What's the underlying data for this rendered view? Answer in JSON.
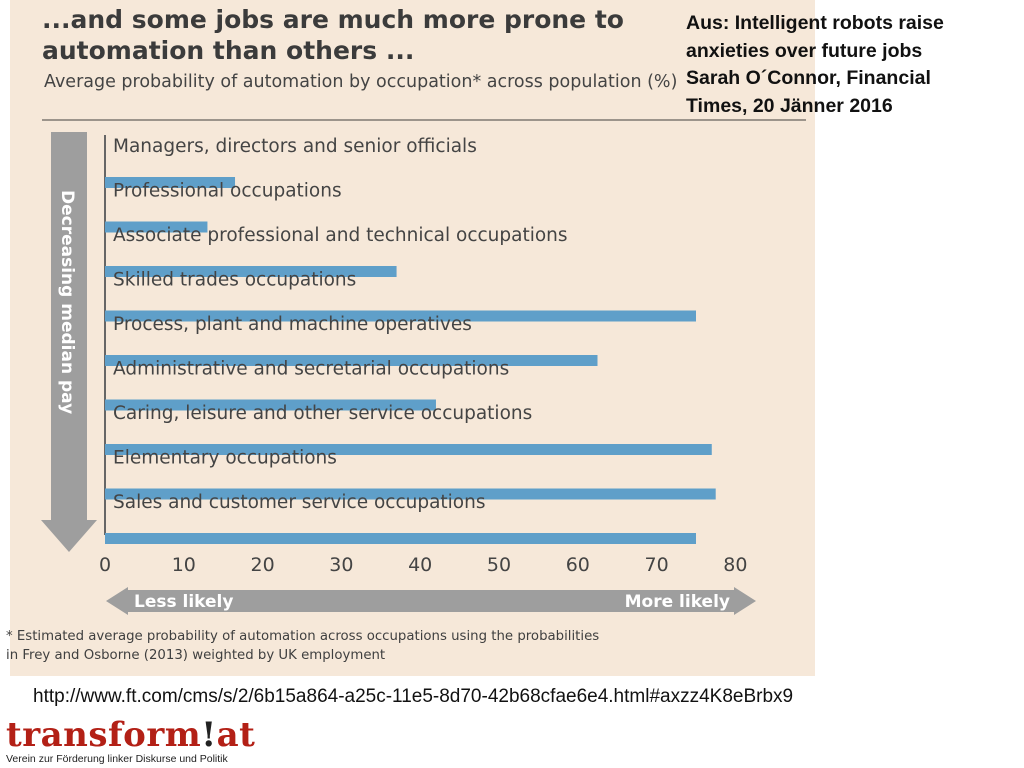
{
  "source_note": {
    "lines": [
      "Aus: Intelligent robots raise",
      "anxieties over future jobs",
      "Sarah O´Connor, Financial",
      "Times, 20 Jänner 2016"
    ]
  },
  "url": "http://www.ft.com/cms/s/2/6b15a864-a25c-11e5-8d70-42b68cfae6e4.html#axzz4K8eBrbx9",
  "logo": {
    "text_main": "transform",
    "text_excl": "!",
    "text_end": "at",
    "tagline": "Verein zur Förderung linker Diskurse und Politik"
  },
  "colors": {
    "bar": "#5f9fc9",
    "background": "#f6e8d9",
    "arrow": "#9e9e9e"
  },
  "chart_data": {
    "type": "bar",
    "orientation": "horizontal",
    "title": "...and some jobs are much more prone to automation than others ...",
    "subtitle": "Average probability of automation by occupation* across population (%)",
    "categories": [
      "Managers, directors and senior officials",
      "Professional occupations",
      "Associate professional and technical occupations",
      "Skilled trades occupations",
      "Process, plant and machine operatives",
      "Administrative and secretarial occupations",
      "Caring, leisure and other service occupations",
      "Elementary occupations",
      "Sales and customer service occupations"
    ],
    "values": [
      16.5,
      13,
      37,
      75,
      62.5,
      42,
      77,
      77.5,
      75
    ],
    "xlim": [
      0,
      80
    ],
    "xticks": [
      "0",
      "10",
      "20",
      "30",
      "40",
      "50",
      "60",
      "70",
      "80"
    ],
    "side_arrow_label": "Decreasing median pay",
    "bottom_arrow_left": "Less likely",
    "bottom_arrow_right": "More likely",
    "footnote_lines": [
      "* Estimated average probability of automation across occupations using the probabilities",
      "in Frey and Osborne (2013) weighted by UK employment"
    ]
  }
}
